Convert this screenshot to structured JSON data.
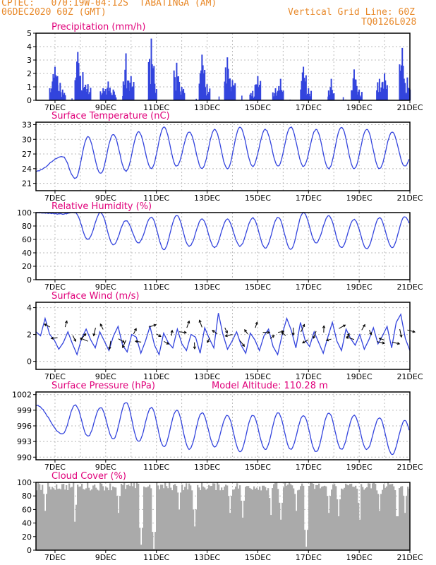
{
  "header": {
    "line1_left": "CPTEC:   070:19W-04:12S  TABATINGA (AM)",
    "line2_left": "06DEC2020 60Z (GMT)",
    "line1_right": "Vertical Grid Line: 60Z",
    "line2_right": "TQ0126L028"
  },
  "x_tick_labels": [
    "7DEC",
    "9DEC",
    "11DEC",
    "13DEC",
    "15DEC",
    "17DEC",
    "19DEC",
    "21DEC"
  ],
  "colors": {
    "series": "#3344dd",
    "title": "#e0007a",
    "header": "#e8892a",
    "cloud": "#aaaaaa",
    "grid": "#bbbbbb"
  },
  "chart_data": [
    {
      "type": "bar",
      "title": "Precipitation (mm/h)",
      "ylim": [
        0,
        5
      ],
      "yticks": [
        "0",
        "1",
        "2",
        "3",
        "4",
        "5"
      ],
      "peaks": [
        [
          6.9,
          1.4
        ],
        [
          7.0,
          2.5
        ],
        [
          7.1,
          1.8
        ],
        [
          7.3,
          0.8
        ],
        [
          7.9,
          3.6
        ],
        [
          8.1,
          2.1
        ],
        [
          8.3,
          1.2
        ],
        [
          8.9,
          0.9
        ],
        [
          9.1,
          1.4
        ],
        [
          9.3,
          0.8
        ],
        [
          9.8,
          3.5
        ],
        [
          10.0,
          1.8
        ],
        [
          10.8,
          4.6
        ],
        [
          10.9,
          1.5
        ],
        [
          11.8,
          2.8
        ],
        [
          12.0,
          1.0
        ],
        [
          12.8,
          3.4
        ],
        [
          13.0,
          1.2
        ],
        [
          13.8,
          3.2
        ],
        [
          14.0,
          1.5
        ],
        [
          14.8,
          0.7
        ],
        [
          15.0,
          1.8
        ],
        [
          15.7,
          0.9
        ],
        [
          15.9,
          1.6
        ],
        [
          16.8,
          2.5
        ],
        [
          17.0,
          0.9
        ],
        [
          17.9,
          1.6
        ],
        [
          18.8,
          2.3
        ],
        [
          19.0,
          0.8
        ],
        [
          19.8,
          1.6
        ],
        [
          20.0,
          2.0
        ],
        [
          20.7,
          3.9
        ],
        [
          20.9,
          1.7
        ]
      ]
    },
    {
      "type": "line",
      "title": "Surface Temperature (nC)",
      "ylim": [
        19.5,
        33.5
      ],
      "yticks": [
        "21",
        "24",
        "27",
        "30",
        "33"
      ],
      "start": 23.5,
      "daily": [
        [
          26.5,
          22.0
        ],
        [
          30.5,
          23.0
        ],
        [
          31.0,
          23.5
        ],
        [
          31.5,
          24.0
        ],
        [
          32.5,
          24.5
        ],
        [
          31.5,
          24.0
        ],
        [
          32.0,
          24.0
        ],
        [
          32.5,
          24.5
        ],
        [
          32.0,
          24.5
        ],
        [
          32.5,
          24.5
        ],
        [
          32.0,
          24.0
        ],
        [
          32.5,
          24.0
        ],
        [
          32.0,
          24.0
        ],
        [
          31.5,
          24.5
        ],
        [
          30.0,
          28.5
        ]
      ]
    },
    {
      "type": "line",
      "title": "Relative Humidity (%)",
      "ylim": [
        0,
        100
      ],
      "yticks": [
        "0",
        "20",
        "40",
        "60",
        "80",
        "100"
      ],
      "start": 100,
      "daily": [
        [
          98,
          100
        ],
        [
          60,
          100
        ],
        [
          52,
          88
        ],
        [
          55,
          93
        ],
        [
          45,
          96
        ],
        [
          50,
          90
        ],
        [
          48,
          90
        ],
        [
          50,
          92
        ],
        [
          47,
          93
        ],
        [
          45,
          100
        ],
        [
          55,
          95
        ],
        [
          48,
          90
        ],
        [
          46,
          92
        ],
        [
          48,
          94
        ],
        [
          55,
          70
        ]
      ]
    },
    {
      "type": "line",
      "title": "Surface Wind (m/s)",
      "ylim": [
        -0.6,
        4.4
      ],
      "yticks": [
        "0",
        "2",
        "4"
      ],
      "values": [
        2.2,
        1.9,
        3.2,
        2.0,
        1.6,
        0.9,
        1.4,
        2.2,
        1.3,
        0.5,
        1.7,
        2.4,
        1.6,
        1.0,
        2.2,
        1.5,
        0.8,
        1.9,
        2.6,
        1.2,
        0.7,
        2.0,
        1.8,
        0.6,
        1.5,
        2.6,
        1.2,
        0.5,
        2.1,
        1.4,
        1.0,
        2.4,
        1.3,
        0.8,
        2.0,
        1.8,
        0.6,
        2.5,
        1.7,
        1.0,
        3.6,
        2.0,
        0.9,
        1.5,
        2.2,
        1.2,
        0.6,
        2.1,
        1.6,
        0.8,
        1.9,
        2.4,
        1.1,
        0.5,
        2.0,
        3.2,
        2.3,
        1.0,
        2.9,
        1.6,
        1.1,
        2.2,
        1.4,
        0.6,
        1.8,
        2.9,
        1.5,
        0.8,
        2.4,
        1.7,
        1.2,
        2.0,
        0.9,
        1.6,
        2.5,
        1.3,
        1.9,
        2.6,
        1.0,
        2.9,
        3.5,
        1.7,
        0.8
      ]
    },
    {
      "type": "line",
      "title": "Surface Pressure (hPa)",
      "annotation": "Model Altitude: 110.28 m",
      "ylim": [
        989.5,
        1002.5
      ],
      "yticks": [
        "990",
        "993",
        "996",
        "999",
        "1002"
      ],
      "start": 1000,
      "daily": [
        [
          994.5,
          1000.0
        ],
        [
          994.0,
          999.5
        ],
        [
          993.5,
          1000.5
        ],
        [
          993.0,
          999.5
        ],
        [
          992.0,
          999.0
        ],
        [
          991.5,
          998.5
        ],
        [
          992.0,
          998.0
        ],
        [
          991.0,
          998.0
        ],
        [
          991.5,
          998.5
        ],
        [
          991.5,
          998.0
        ],
        [
          991.0,
          998.5
        ],
        [
          991.5,
          998.0
        ],
        [
          991.5,
          997.5
        ],
        [
          990.5,
          997.0
        ],
        [
          990.0,
          994.0
        ]
      ]
    },
    {
      "type": "bar",
      "title": "Cloud Cover (%)",
      "ylim": [
        0,
        100
      ],
      "yticks": [
        "0",
        "20",
        "40",
        "60",
        "80",
        "100"
      ],
      "dips": [
        [
          6.6,
          58
        ],
        [
          7.8,
          42
        ],
        [
          9.5,
          55
        ],
        [
          10.4,
          8
        ],
        [
          10.9,
          2
        ],
        [
          11.9,
          60
        ],
        [
          12.5,
          35
        ],
        [
          13.9,
          55
        ],
        [
          14.4,
          48
        ],
        [
          15.5,
          52
        ],
        [
          15.9,
          45
        ],
        [
          16.5,
          58
        ],
        [
          16.9,
          5
        ],
        [
          17.8,
          55
        ],
        [
          18.2,
          50
        ],
        [
          19.0,
          45
        ],
        [
          19.8,
          58
        ],
        [
          20.5,
          50
        ],
        [
          20.8,
          55
        ]
      ]
    }
  ]
}
